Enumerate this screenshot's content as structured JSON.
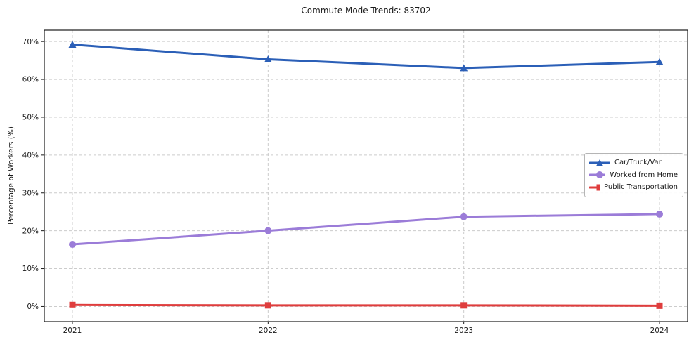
{
  "chart_data": {
    "type": "line",
    "title": "Commute Mode Trends: 83702",
    "xlabel": "",
    "ylabel": "Percentage of Workers (%)",
    "categories": [
      "2021",
      "2022",
      "2023",
      "2024"
    ],
    "series": [
      {
        "name": "Car/Truck/Van",
        "marker": "triangle",
        "color": "#2b5fb7",
        "values": [
          69.2,
          65.3,
          63.0,
          64.6
        ]
      },
      {
        "name": "Worked from Home",
        "marker": "circle",
        "color": "#9b7cd8",
        "values": [
          16.4,
          20.0,
          23.7,
          24.4
        ]
      },
      {
        "name": "Public Transportation",
        "marker": "square",
        "color": "#df3d3d",
        "values": [
          0.4,
          0.3,
          0.3,
          0.2
        ]
      }
    ],
    "y_ticks": [
      0,
      10,
      20,
      30,
      40,
      50,
      60,
      70
    ],
    "y_tick_labels": [
      "0%",
      "10%",
      "20%",
      "30%",
      "40%",
      "50%",
      "60%",
      "70%"
    ],
    "ylim": [
      -4,
      73
    ],
    "grid": true,
    "grid_style": "dashed",
    "legend_position": "right-middle"
  }
}
